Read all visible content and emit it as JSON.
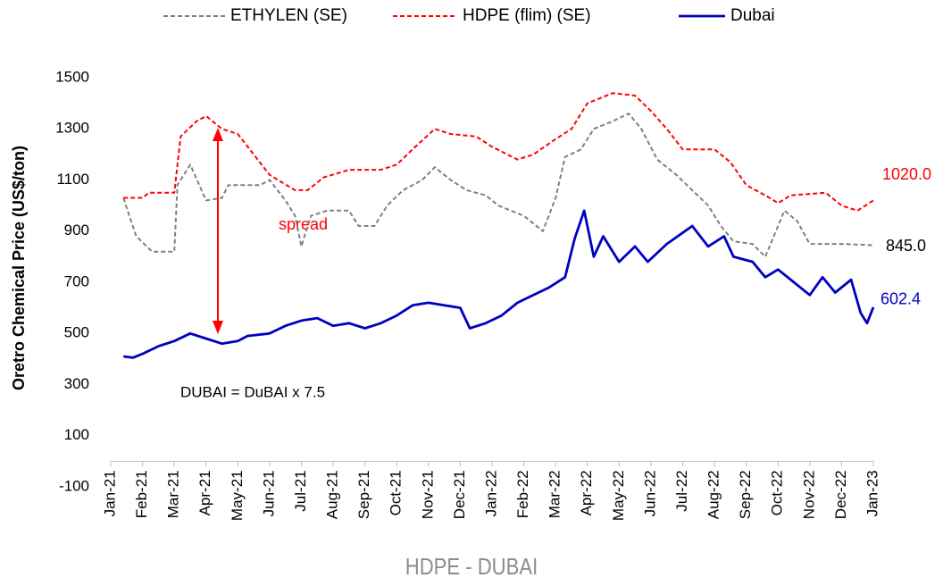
{
  "chart_data": {
    "type": "line",
    "y_label": "Oretro Chemical Price (US$/ton)",
    "footer": "HDPE - DUBAI",
    "annotations": [
      "spread",
      "DUBAI = DuBAI x 7.5"
    ],
    "ylim": [
      -100,
      1500
    ],
    "yticks": [
      -100,
      100,
      300,
      500,
      700,
      900,
      1100,
      1300,
      1500
    ],
    "xlim": [
      0,
      24
    ],
    "xticks": [
      {
        "value": 0,
        "label": "Jan-21"
      },
      {
        "value": 1,
        "label": "Feb-21"
      },
      {
        "value": 2,
        "label": "Mar-21"
      },
      {
        "value": 3,
        "label": "Apr-21"
      },
      {
        "value": 4,
        "label": "May-21"
      },
      {
        "value": 5,
        "label": "Jun-21"
      },
      {
        "value": 6,
        "label": "Jul-21"
      },
      {
        "value": 7,
        "label": "Aug-21"
      },
      {
        "value": 8,
        "label": "Sep-21"
      },
      {
        "value": 9,
        "label": "Oct-21"
      },
      {
        "value": 10,
        "label": "Nov-21"
      },
      {
        "value": 11,
        "label": "Dec-21"
      },
      {
        "value": 12,
        "label": "Jan-22"
      },
      {
        "value": 13,
        "label": "Feb-22"
      },
      {
        "value": 14,
        "label": "Mar-22"
      },
      {
        "value": 15,
        "label": "Apr-22"
      },
      {
        "value": 16,
        "label": "May-22"
      },
      {
        "value": 17,
        "label": "Jun-22"
      },
      {
        "value": 18,
        "label": "Jul-22"
      },
      {
        "value": 19,
        "label": "Aug-22"
      },
      {
        "value": 20,
        "label": "Sep-22"
      },
      {
        "value": 21,
        "label": "Oct-22"
      },
      {
        "value": 22,
        "label": "Nov-22"
      },
      {
        "value": 23,
        "label": "Dec-22"
      },
      {
        "value": 24,
        "label": "Jan-23"
      }
    ],
    "grid": false,
    "legend": "top",
    "series": [
      {
        "name": "ETHYLEN (SE)",
        "color": "#808080",
        "dashed": true,
        "x": [
          0.4,
          0.8,
          1.3,
          2.0,
          2.1,
          2.5,
          3.0,
          3.5,
          3.7,
          4.7,
          5.0,
          5.5,
          5.8,
          6.0,
          6.3,
          6.8,
          7.5,
          7.8,
          8.3,
          8.7,
          9.2,
          9.8,
          10.2,
          10.7,
          11.2,
          11.8,
          12.2,
          13.0,
          13.6,
          14.0,
          14.3,
          14.8,
          15.2,
          15.8,
          16.3,
          16.7,
          17.2,
          17.8,
          18.3,
          18.8,
          19.2,
          19.6,
          20.2,
          20.6,
          21.2,
          21.6,
          22.0,
          23.0,
          24.0
        ],
        "values": [
          1030,
          880,
          820,
          820,
          1080,
          1160,
          1020,
          1030,
          1080,
          1080,
          1100,
          1020,
          960,
          840,
          960,
          980,
          980,
          920,
          920,
          1000,
          1060,
          1100,
          1150,
          1100,
          1060,
          1040,
          1000,
          960,
          900,
          1030,
          1190,
          1220,
          1300,
          1330,
          1360,
          1300,
          1180,
          1120,
          1060,
          1000,
          920,
          860,
          850,
          800,
          980,
          940,
          850,
          850,
          845
        ],
        "value_labels": [
          null,
          null,
          null,
          null,
          null,
          null,
          null,
          null,
          null,
          null,
          null,
          null,
          null,
          null,
          null,
          null,
          null,
          null,
          null,
          null,
          null,
          null,
          null,
          null,
          null,
          null,
          null,
          null,
          null,
          null,
          null,
          null,
          null,
          null,
          null,
          null,
          null,
          null,
          null,
          null,
          null,
          null,
          null,
          null,
          null,
          null,
          null,
          null,
          "845.0"
        ]
      },
      {
        "name": "HDPE (flim) (SE)",
        "color": "#ff0000",
        "dashed": true,
        "x": [
          0.4,
          1.0,
          1.2,
          2.0,
          2.2,
          2.7,
          3.0,
          3.5,
          4.0,
          4.5,
          5.0,
          5.8,
          6.2,
          6.7,
          7.5,
          8.5,
          9.0,
          9.5,
          10.2,
          10.7,
          11.5,
          12.0,
          12.8,
          13.3,
          14.0,
          14.5,
          15.0,
          15.8,
          16.5,
          17.0,
          17.5,
          18.0,
          19.0,
          19.5,
          20.0,
          20.6,
          21.0,
          21.4,
          22.5,
          23.0,
          23.5,
          24.0
        ],
        "values": [
          1030,
          1030,
          1050,
          1050,
          1270,
          1330,
          1350,
          1300,
          1280,
          1200,
          1120,
          1060,
          1060,
          1110,
          1140,
          1140,
          1160,
          1220,
          1300,
          1280,
          1270,
          1230,
          1180,
          1200,
          1260,
          1300,
          1400,
          1440,
          1430,
          1370,
          1300,
          1220,
          1220,
          1170,
          1080,
          1040,
          1010,
          1040,
          1050,
          1000,
          980,
          1020
        ],
        "value_labels": [
          null,
          null,
          null,
          null,
          null,
          null,
          null,
          null,
          null,
          null,
          null,
          null,
          null,
          null,
          null,
          null,
          null,
          null,
          null,
          null,
          null,
          null,
          null,
          null,
          null,
          null,
          null,
          null,
          null,
          null,
          null,
          null,
          null,
          null,
          null,
          null,
          null,
          null,
          null,
          null,
          null,
          "1020.0"
        ]
      },
      {
        "name": "Dubai",
        "color": "#0000c0",
        "dashed": false,
        "x": [
          0.4,
          0.7,
          1.0,
          1.5,
          2.0,
          2.5,
          3.0,
          3.5,
          4.0,
          4.3,
          5.0,
          5.5,
          6.0,
          6.5,
          7.0,
          7.5,
          8.0,
          8.5,
          9.0,
          9.5,
          10.0,
          10.5,
          11.0,
          11.3,
          11.8,
          12.3,
          12.8,
          13.3,
          13.8,
          14.3,
          14.6,
          14.9,
          15.2,
          15.5,
          16.0,
          16.5,
          16.9,
          17.5,
          18.3,
          18.8,
          19.3,
          19.6,
          20.2,
          20.6,
          21.0,
          21.5,
          22.0,
          22.4,
          22.8,
          23.3,
          23.6,
          23.8,
          24.0
        ],
        "values": [
          410,
          405,
          420,
          450,
          470,
          500,
          480,
          460,
          470,
          490,
          500,
          530,
          550,
          560,
          530,
          540,
          520,
          540,
          570,
          610,
          620,
          610,
          600,
          520,
          540,
          570,
          620,
          650,
          680,
          720,
          870,
          980,
          800,
          880,
          780,
          840,
          780,
          850,
          920,
          840,
          880,
          800,
          780,
          720,
          750,
          700,
          650,
          720,
          660,
          710,
          580,
          540,
          602.4
        ],
        "value_labels": [
          null,
          null,
          null,
          null,
          null,
          null,
          null,
          null,
          null,
          null,
          null,
          null,
          null,
          null,
          null,
          null,
          null,
          null,
          null,
          null,
          null,
          null,
          null,
          null,
          null,
          null,
          null,
          null,
          null,
          null,
          null,
          null,
          null,
          null,
          null,
          null,
          null,
          null,
          null,
          null,
          null,
          null,
          null,
          null,
          null,
          null,
          null,
          null,
          null,
          null,
          null,
          null,
          "602.4"
        ]
      }
    ]
  }
}
